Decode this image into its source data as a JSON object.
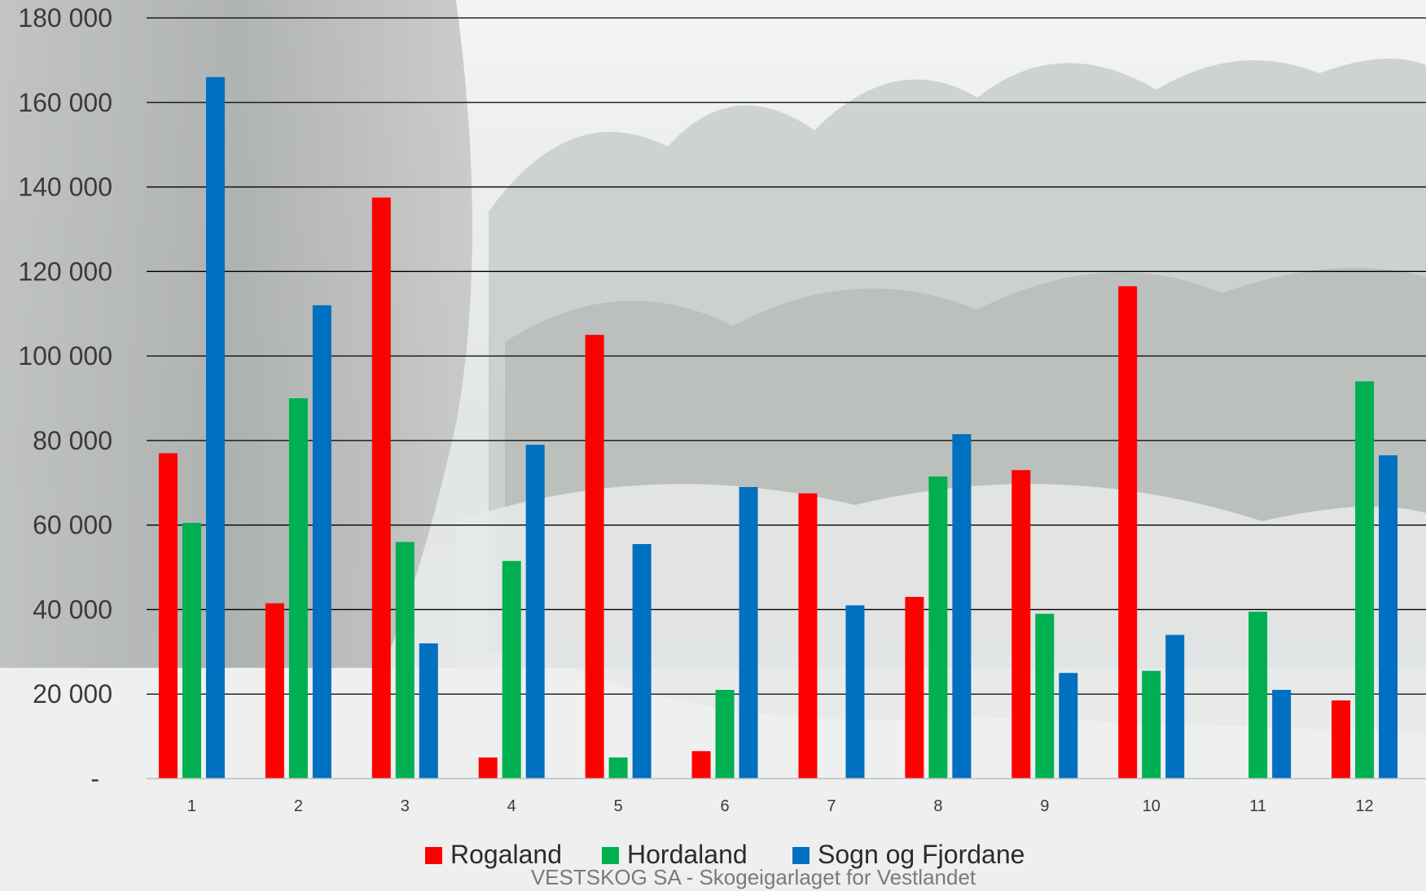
{
  "chart_data": {
    "type": "bar",
    "categories": [
      "1",
      "2",
      "3",
      "4",
      "5",
      "6",
      "7",
      "8",
      "9",
      "10",
      "11",
      "12"
    ],
    "series": [
      {
        "name": "Rogaland",
        "color": "#ff0000",
        "values": [
          77000,
          41500,
          137500,
          5000,
          105000,
          6500,
          67500,
          43000,
          73000,
          116500,
          0,
          18500
        ]
      },
      {
        "name": "Hordaland",
        "color": "#00b050",
        "values": [
          60500,
          90000,
          56000,
          51500,
          5000,
          21000,
          0,
          71500,
          39000,
          25500,
          39500,
          94000
        ]
      },
      {
        "name": "Sogn og Fjordane",
        "color": "#0070c0",
        "values": [
          166000,
          112000,
          32000,
          79000,
          55500,
          69000,
          41000,
          81500,
          25000,
          34000,
          21000,
          76500
        ]
      }
    ],
    "yticks": [
      "-",
      "20 000",
      "40 000",
      "60 000",
      "80 000",
      "100 000",
      "120 000",
      "140 000",
      "160 000",
      "180 000"
    ],
    "ylim": [
      0,
      180000
    ],
    "grid": true,
    "legend_position": "bottom"
  },
  "footer": "VESTSKOG SA - Skogeigarlaget for Vestlandet"
}
